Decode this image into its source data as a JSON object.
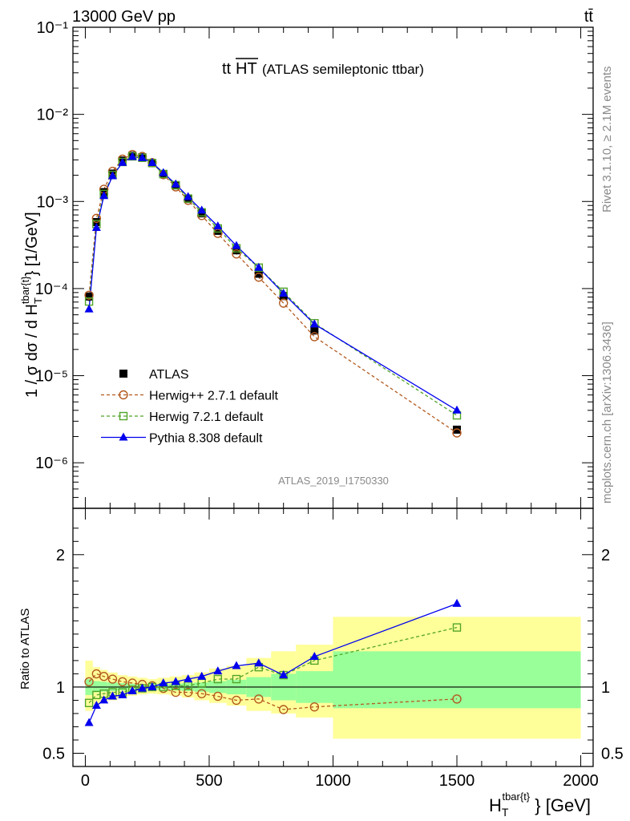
{
  "header": {
    "energy": "13000 GeV pp",
    "process": "tt̄"
  },
  "side_text": {
    "rivet": "Rivet 3.1.10, ≥ 2.1M events",
    "mcplots": "mcplots.cern.ch [arXiv:1306.3436]"
  },
  "chart_data": [
    {
      "type": "line",
      "title_main": "tt",
      "title_overline": "HT",
      "title_sub": "(ATLAS semileptonic ttbar)",
      "watermark": "ATLAS_2019_I1750330",
      "yscale": "log",
      "ylim": [
        3e-07,
        0.1
      ],
      "xlim": [
        -50,
        2050
      ],
      "ylabel": "1 / σ dσ / d H_T^{tbar{t}} [1/GeV]",
      "ytick_labels": [
        "10⁻⁶",
        "10⁻⁵",
        "10⁻⁴",
        "10⁻³",
        "10⁻²",
        "10⁻¹"
      ],
      "legend_position": "middle-left",
      "x": [
        15,
        45,
        75,
        110,
        150,
        190,
        230,
        270,
        315,
        365,
        415,
        470,
        535,
        610,
        700,
        800,
        925,
        1500
      ],
      "series": [
        {
          "name": "ATLAS",
          "color": "#000000",
          "marker": "square-filled",
          "values": [
            8.1e-05,
            0.00058,
            0.00128,
            0.00209,
            0.00295,
            0.00335,
            0.00322,
            0.00276,
            0.00206,
            0.00153,
            0.00107,
            0.00073,
            0.00046,
            0.000275,
            0.000148,
            8.2e-05,
            3.3e-05,
            2.4e-06
          ]
        },
        {
          "name": "Herwig++ 2.7.1 default",
          "color": "#b35a1f",
          "marker": "circle-open",
          "dashed": true,
          "values": [
            8.4e-05,
            0.00064,
            0.00138,
            0.00222,
            0.00306,
            0.00346,
            0.00329,
            0.00279,
            0.00203,
            0.00147,
            0.00103,
            0.00069,
            0.00043,
            0.00025,
            0.000135,
            6.8e-05,
            2.8e-05,
            2.2e-06
          ]
        },
        {
          "name": "Herwig 7.2.1 default",
          "color": "#52a52a",
          "marker": "square-open",
          "dashed": true,
          "values": [
            7.1e-05,
            0.00055,
            0.00122,
            0.00201,
            0.00284,
            0.00329,
            0.00317,
            0.00276,
            0.00207,
            0.00154,
            0.00108,
            0.00075,
            0.00049,
            0.00029,
            0.000174,
            9.2e-05,
            4e-05,
            3.5e-06
          ]
        },
        {
          "name": "Pythia 8.308 default",
          "color": "#0000ee",
          "marker": "triangle-filled",
          "values": [
            5.8e-05,
            0.0005,
            0.00116,
            0.00196,
            0.00279,
            0.00326,
            0.00317,
            0.00278,
            0.00213,
            0.00158,
            0.00113,
            0.00079,
            0.00052,
            0.00031,
            0.000174,
            8.8e-05,
            3.9e-05,
            4e-06
          ]
        }
      ]
    },
    {
      "type": "line",
      "ylabel": "Ratio to ATLAS",
      "xlabel": "H_T^{tbar{t}} [GeV]",
      "ylim": [
        0.4,
        2.35
      ],
      "xlim": [
        -50,
        2050
      ],
      "ytick_labels": [
        "0.5",
        "1",
        "2"
      ],
      "xtick_labels": [
        "0",
        "500",
        "1000",
        "1500",
        "2000"
      ],
      "bins": [
        [
          0,
          30
        ],
        [
          30,
          60
        ],
        [
          60,
          90
        ],
        [
          90,
          130
        ],
        [
          130,
          170
        ],
        [
          170,
          210
        ],
        [
          210,
          250
        ],
        [
          250,
          290
        ],
        [
          290,
          340
        ],
        [
          340,
          390
        ],
        [
          390,
          440
        ],
        [
          440,
          500
        ],
        [
          500,
          570
        ],
        [
          570,
          650
        ],
        [
          650,
          750
        ],
        [
          750,
          850
        ],
        [
          850,
          1000
        ],
        [
          1000,
          2000
        ]
      ],
      "band_stat": [
        0.94,
        0.96,
        0.965,
        0.97,
        0.975,
        0.98,
        0.985,
        0.985,
        0.98,
        0.975,
        0.97,
        0.965,
        0.955,
        0.945,
        0.925,
        0.9,
        0.88,
        0.84
      ],
      "band_stat_hi": [
        1.06,
        1.045,
        1.04,
        1.035,
        1.03,
        1.025,
        1.02,
        1.02,
        1.02,
        1.025,
        1.03,
        1.035,
        1.045,
        1.055,
        1.075,
        1.1,
        1.12,
        1.27
      ],
      "band_total": [
        0.82,
        0.87,
        0.89,
        0.9,
        0.92,
        0.935,
        0.945,
        0.95,
        0.945,
        0.935,
        0.92,
        0.9,
        0.88,
        0.86,
        0.82,
        0.8,
        0.77,
        0.61
      ],
      "band_total_hi": [
        1.2,
        1.15,
        1.13,
        1.11,
        1.09,
        1.08,
        1.07,
        1.06,
        1.07,
        1.08,
        1.09,
        1.11,
        1.14,
        1.16,
        1.22,
        1.27,
        1.32,
        1.53
      ],
      "series": [
        {
          "name": "Herwig++ 2.7.1 default",
          "color": "#b35a1f",
          "values": [
            1.04,
            1.1,
            1.08,
            1.06,
            1.04,
            1.03,
            1.02,
            1.01,
            0.99,
            0.96,
            0.96,
            0.95,
            0.93,
            0.9,
            0.91,
            0.83,
            0.85,
            0.91
          ]
        },
        {
          "name": "Herwig 7.2.1 default",
          "color": "#52a52a",
          "values": [
            0.88,
            0.94,
            0.95,
            0.96,
            0.96,
            0.98,
            0.99,
            1.0,
            1.0,
            1.01,
            1.01,
            1.03,
            1.06,
            1.06,
            1.15,
            1.09,
            1.2,
            1.45
          ]
        },
        {
          "name": "Pythia 8.308 default",
          "color": "#0000ee",
          "values": [
            0.73,
            0.86,
            0.9,
            0.93,
            0.94,
            0.97,
            0.99,
            1.0,
            1.03,
            1.04,
            1.06,
            1.08,
            1.12,
            1.16,
            1.18,
            1.09,
            1.23,
            1.63
          ]
        }
      ]
    }
  ]
}
